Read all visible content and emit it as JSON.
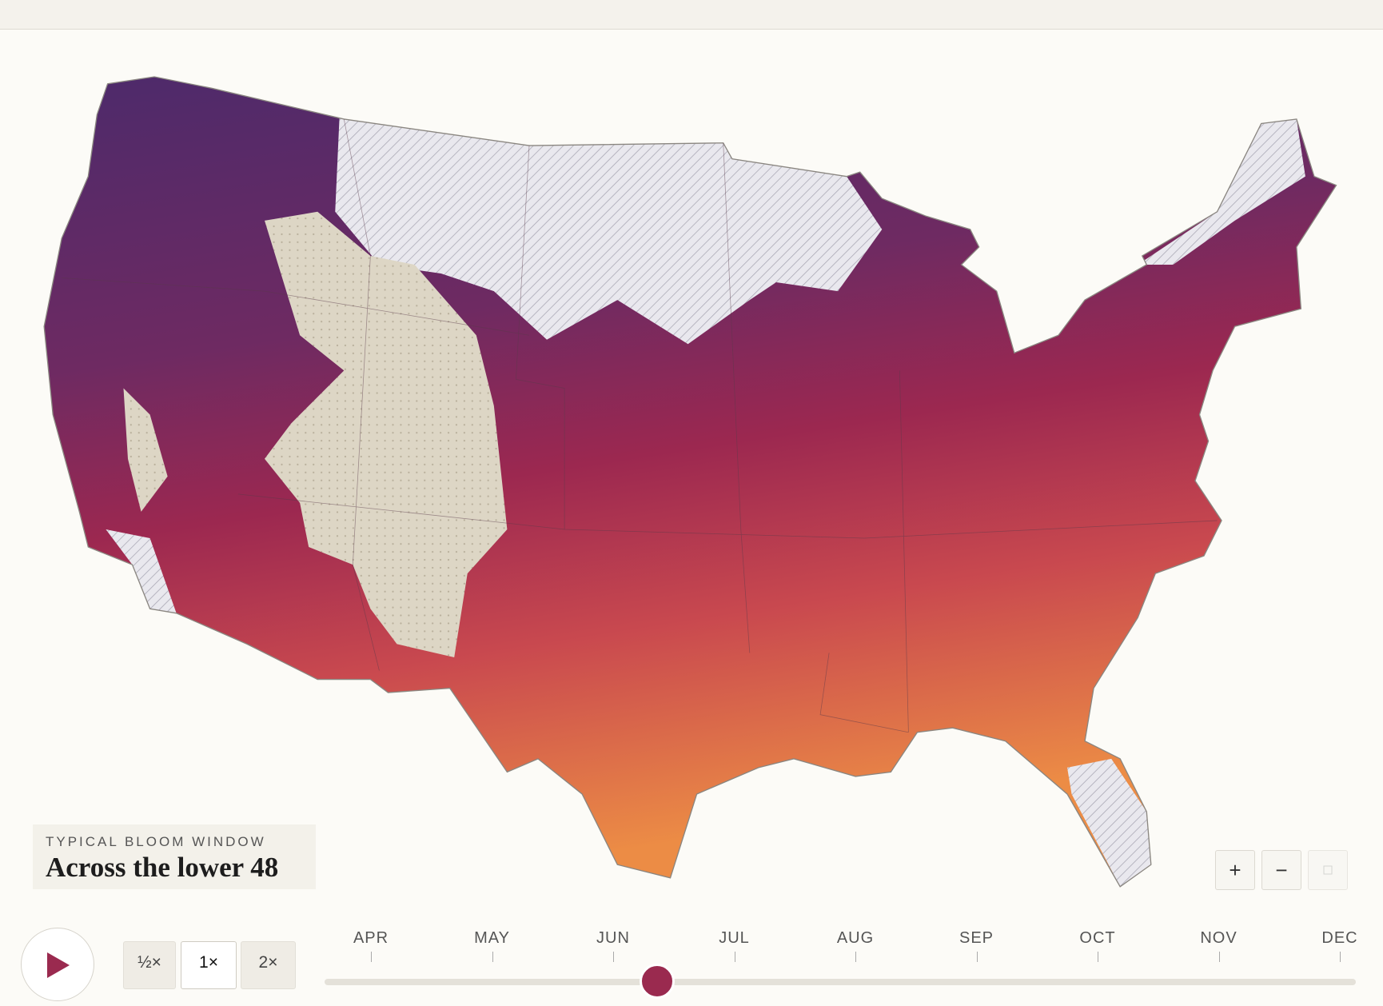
{
  "legend": {
    "kicker": "TYPICAL BLOOM WINDOW",
    "title": "Across the lower 48"
  },
  "speed_buttons": [
    "½×",
    "1×",
    "2×"
  ],
  "zoom_buttons": [
    "+",
    "−"
  ],
  "timeline": {
    "months": [
      "APR",
      "MAY",
      "JUN",
      "JUL",
      "AUG",
      "SEP",
      "OCT",
      "NOV",
      "DEC"
    ]
  }
}
